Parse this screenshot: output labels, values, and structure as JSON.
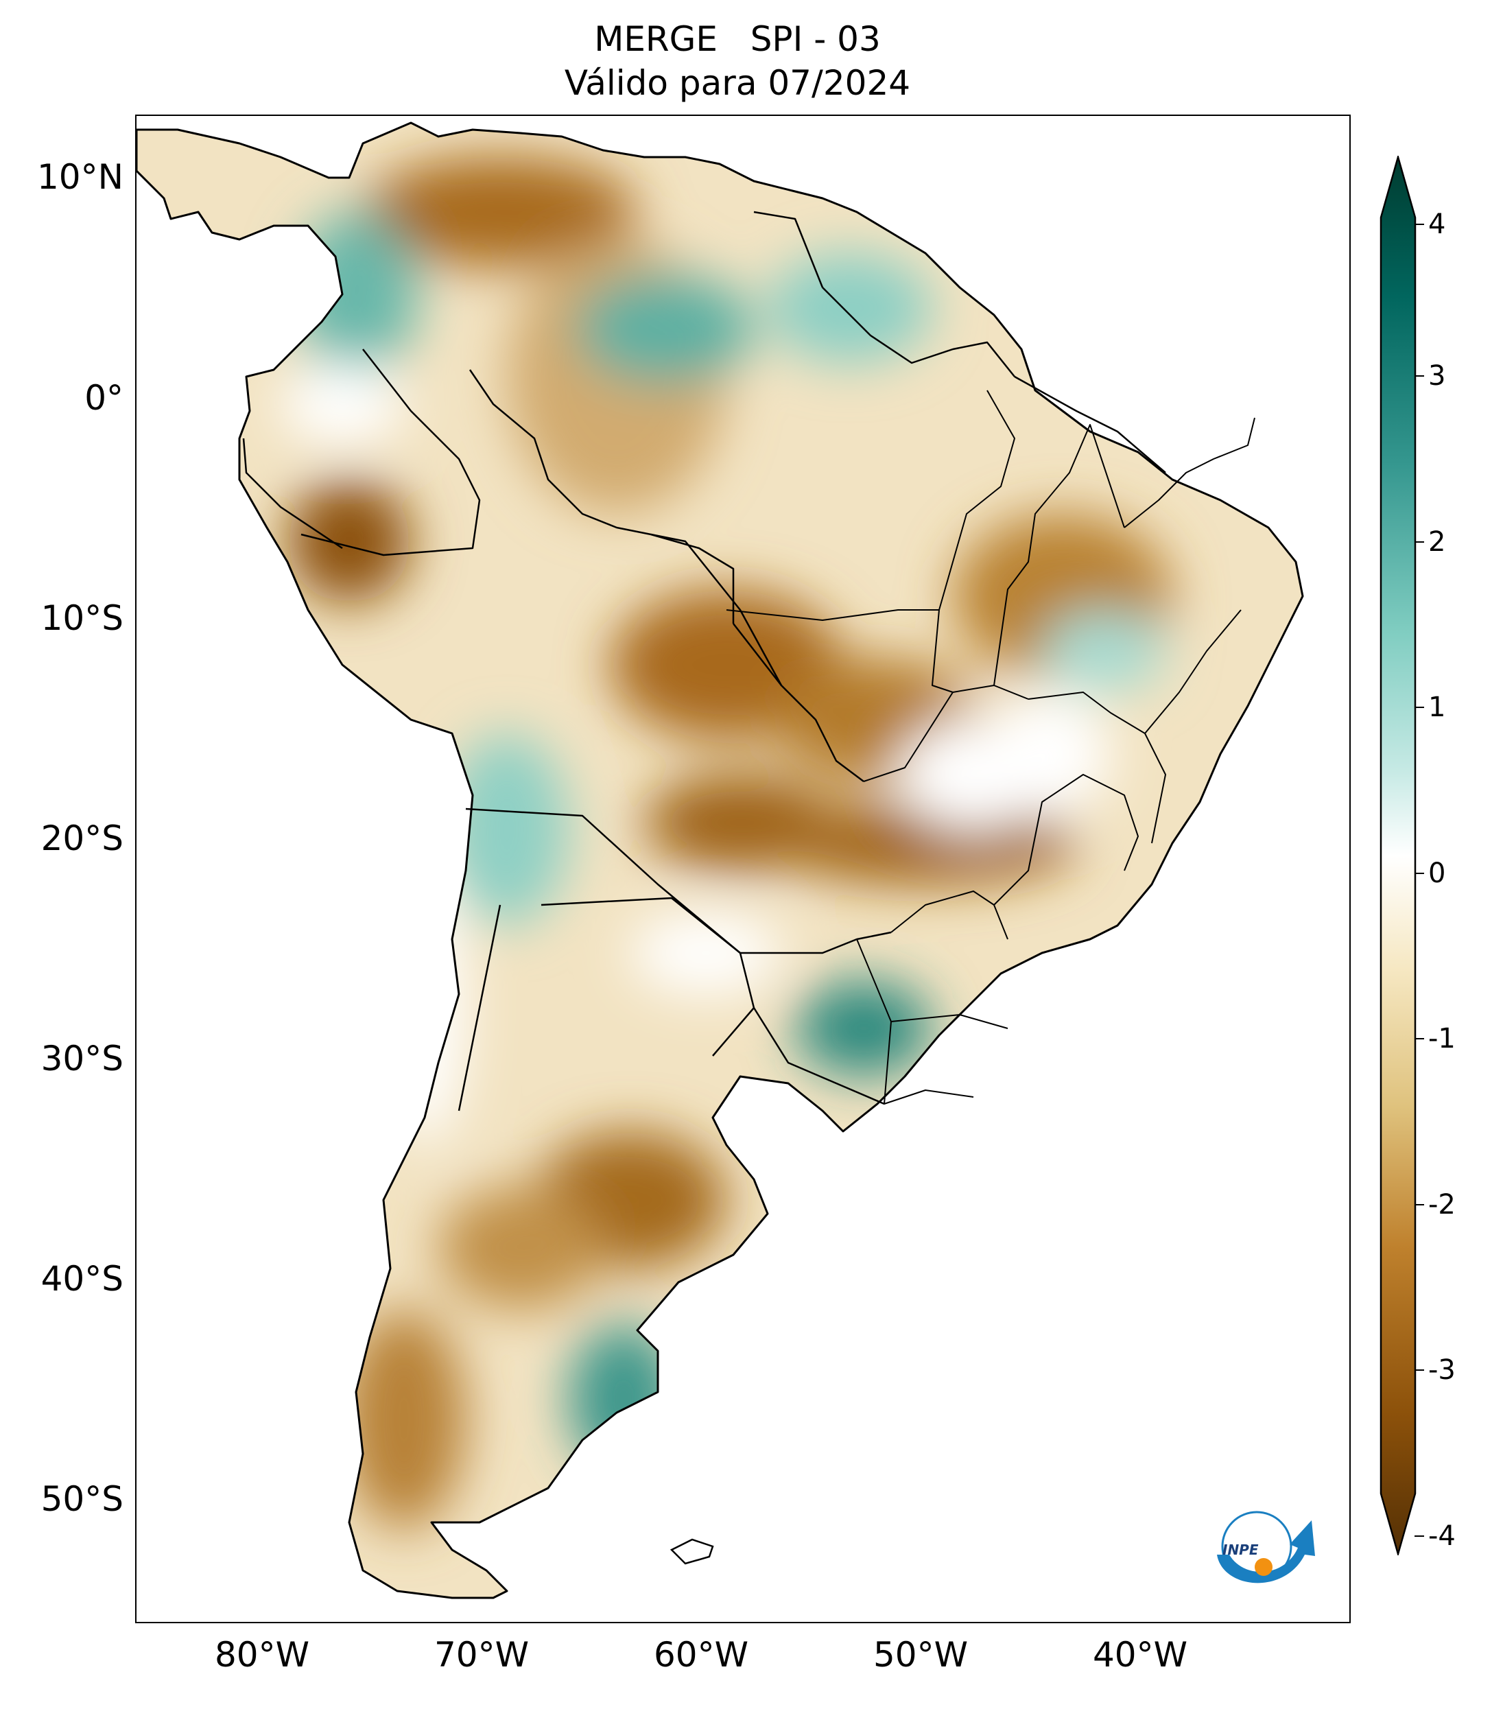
{
  "title": {
    "line1": "MERGE   SPI - 03",
    "line2": "Válido para 07/2024"
  },
  "map": {
    "region": "South America",
    "variable": "SPI-03 (Standardized Precipitation Index, 3 months)",
    "lat_labels": [
      "10°N",
      "0°",
      "10°S",
      "20°S",
      "30°S",
      "40°S",
      "50°S"
    ],
    "lon_labels": [
      "80°W",
      "70°W",
      "60°W",
      "50°W",
      "40°W"
    ],
    "dry_color": "#8c5109",
    "wet_color": "#0a5f55",
    "neutral_color": "#ffffff"
  },
  "colorbar": {
    "min": -4,
    "max": 4,
    "tick_labels": [
      "4",
      "3",
      "2",
      "1",
      "0",
      "-1",
      "-2",
      "-3",
      "-4"
    ],
    "colors": [
      "#543005",
      "#8c510a",
      "#bf812d",
      "#dfc27d",
      "#f6e8c3",
      "#ffffff",
      "#c7eae5",
      "#80cdc1",
      "#35978f",
      "#01665e",
      "#003c30"
    ]
  },
  "logo": {
    "text": "INPE"
  }
}
